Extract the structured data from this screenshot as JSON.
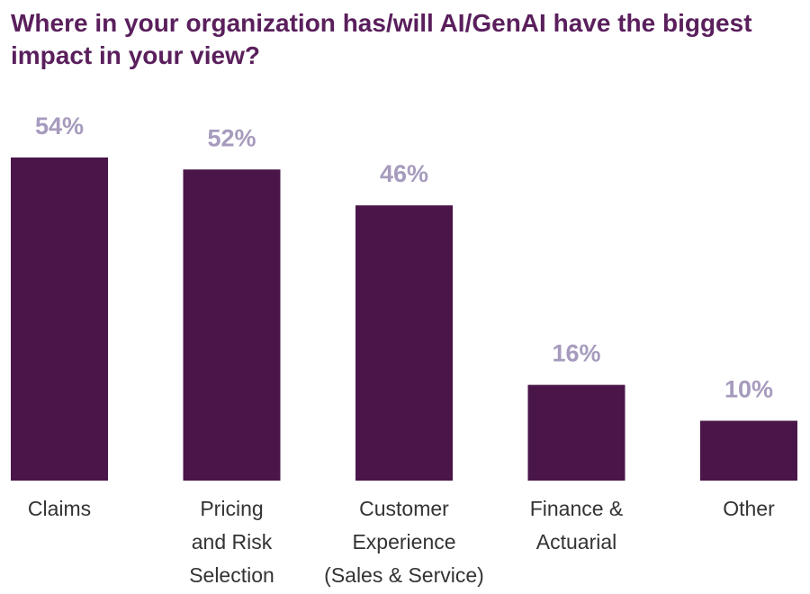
{
  "chart_data": {
    "type": "bar",
    "title": "Where in your organization has/will AI/GenAI have the biggest impact in your view?",
    "categories": [
      [
        "Claims"
      ],
      [
        "Pricing",
        "and Risk",
        "Selection"
      ],
      [
        "Customer",
        "Experience",
        "(Sales & Service)"
      ],
      [
        "Finance &",
        "Actuarial"
      ],
      [
        "Other"
      ]
    ],
    "values": [
      54,
      52,
      46,
      16,
      10
    ],
    "value_labels": [
      "54%",
      "52%",
      "46%",
      "16%",
      "10%"
    ],
    "unit": "%",
    "xlabel": "",
    "ylabel": "",
    "ylim": [
      0,
      54
    ],
    "grid": false,
    "legend": "none",
    "bar_color": "#4a1548",
    "label_color": "#a79bbd",
    "title_color": "#5a1f5c"
  }
}
